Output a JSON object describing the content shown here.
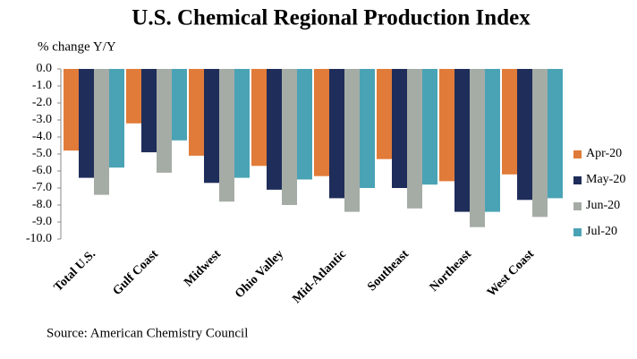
{
  "chart_data": {
    "type": "bar",
    "title": "U.S. Chemical Regional Production Index",
    "y_label": "% change Y/Y",
    "source": "Source: American Chemistry Council",
    "categories": [
      "Total U.S.",
      "Gulf Coast",
      "Midwest",
      "Ohio Valley",
      "Mid-Atlantic",
      "Southeast",
      "Northeast",
      "West Coast"
    ],
    "series": [
      {
        "name": "Apr-20",
        "color": "#e07b39",
        "values": [
          -4.8,
          -3.2,
          -5.1,
          -5.7,
          -6.3,
          -5.3,
          -6.6,
          -6.2
        ]
      },
      {
        "name": "May-20",
        "color": "#1f2d5a",
        "values": [
          -6.4,
          -4.9,
          -6.7,
          -7.1,
          -7.6,
          -7.0,
          -8.4,
          -7.7
        ]
      },
      {
        "name": "Jun-20",
        "color": "#a5aca5",
        "values": [
          -7.4,
          -6.1,
          -7.8,
          -8.0,
          -8.4,
          -8.2,
          -9.3,
          -8.7
        ]
      },
      {
        "name": "Jul-20",
        "color": "#4aa3b5",
        "values": [
          -5.8,
          -4.2,
          -6.4,
          -6.5,
          -7.0,
          -6.8,
          -8.4,
          -7.6
        ]
      }
    ],
    "ylim": [
      -10,
      0
    ],
    "yticks": [
      {
        "value": 0,
        "label": "0.0"
      },
      {
        "value": -1,
        "label": "-1.0"
      },
      {
        "value": -2,
        "label": "-2.0"
      },
      {
        "value": -3,
        "label": "-3.0"
      },
      {
        "value": -4,
        "label": "-4.0"
      },
      {
        "value": -5,
        "label": "-5.0"
      },
      {
        "value": -6,
        "label": "-6.0"
      },
      {
        "value": -7,
        "label": "-7.0"
      },
      {
        "value": -8,
        "label": "-8.0"
      },
      {
        "value": -9,
        "label": "-9.0"
      },
      {
        "value": -10,
        "label": "-10.0"
      }
    ],
    "legend": "right"
  }
}
